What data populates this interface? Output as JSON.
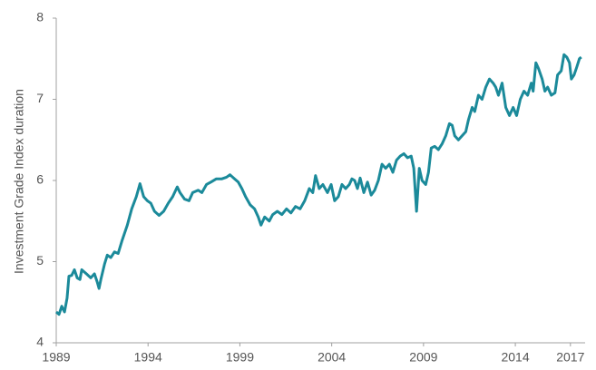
{
  "chart_data": {
    "type": "line",
    "y_label": "Investment Grade Index duration",
    "xlim": [
      1989,
      2017.8
    ],
    "xticks": [
      1989,
      1994,
      1999,
      2004,
      2009,
      2014,
      2017
    ],
    "ylim": [
      4,
      8
    ],
    "yticks": [
      4,
      5,
      6,
      7,
      8
    ],
    "series": [
      {
        "name": "Investment Grade Index duration",
        "color": "#1b8a9a",
        "x": [
          1989.0,
          1989.15,
          1989.3,
          1989.45,
          1989.59,
          1989.69,
          1989.84,
          1989.99,
          1990.14,
          1990.29,
          1990.39,
          1990.64,
          1990.88,
          1991.08,
          1991.23,
          1991.33,
          1991.43,
          1991.63,
          1991.78,
          1991.97,
          1992.17,
          1992.37,
          1992.57,
          1992.87,
          1993.11,
          1993.36,
          1993.56,
          1993.76,
          1993.96,
          1994.15,
          1994.35,
          1994.6,
          1994.85,
          1995.1,
          1995.34,
          1995.59,
          1995.74,
          1995.99,
          1996.23,
          1996.43,
          1996.73,
          1996.93,
          1997.18,
          1997.42,
          1997.72,
          1998.02,
          1998.27,
          1998.46,
          1998.71,
          1998.91,
          1999.11,
          1999.31,
          1999.56,
          1999.8,
          2000.0,
          2000.15,
          2000.35,
          2000.6,
          2000.79,
          2001.04,
          2001.29,
          2001.54,
          2001.78,
          2002.03,
          2002.28,
          2002.53,
          2002.78,
          2002.97,
          2003.12,
          2003.32,
          2003.52,
          2003.77,
          2003.97,
          2004.16,
          2004.36,
          2004.56,
          2004.76,
          2004.96,
          2005.1,
          2005.25,
          2005.4,
          2005.55,
          2005.75,
          2005.95,
          2006.15,
          2006.34,
          2006.54,
          2006.74,
          2006.94,
          2007.14,
          2007.33,
          2007.53,
          2007.73,
          2007.93,
          2008.13,
          2008.33,
          2008.47,
          2008.62,
          2008.77,
          2008.92,
          2009.12,
          2009.27,
          2009.42,
          2009.61,
          2009.81,
          2010.01,
          2010.21,
          2010.41,
          2010.56,
          2010.7,
          2010.9,
          2011.1,
          2011.3,
          2011.45,
          2011.65,
          2011.79,
          2011.99,
          2012.19,
          2012.39,
          2012.59,
          2012.79,
          2012.93,
          2013.08,
          2013.28,
          2013.48,
          2013.68,
          2013.88,
          2014.07,
          2014.27,
          2014.47,
          2014.67,
          2014.87,
          2014.97,
          2015.12,
          2015.26,
          2015.46,
          2015.61,
          2015.76,
          2015.96,
          2016.16,
          2016.3,
          2016.5,
          2016.65,
          2016.8,
          2016.95,
          2017.05,
          2017.2,
          2017.35,
          2017.49,
          2017.59
        ],
        "values": [
          4.38,
          4.35,
          4.45,
          4.38,
          4.55,
          4.82,
          4.83,
          4.9,
          4.8,
          4.78,
          4.9,
          4.85,
          4.8,
          4.85,
          4.75,
          4.67,
          4.78,
          4.97,
          5.08,
          5.05,
          5.12,
          5.1,
          5.25,
          5.45,
          5.65,
          5.8,
          5.96,
          5.8,
          5.75,
          5.72,
          5.62,
          5.57,
          5.62,
          5.72,
          5.8,
          5.92,
          5.85,
          5.77,
          5.75,
          5.85,
          5.88,
          5.85,
          5.95,
          5.98,
          6.02,
          6.02,
          6.04,
          6.07,
          6.02,
          5.98,
          5.9,
          5.8,
          5.7,
          5.65,
          5.55,
          5.45,
          5.55,
          5.5,
          5.58,
          5.62,
          5.58,
          5.65,
          5.6,
          5.68,
          5.65,
          5.75,
          5.9,
          5.85,
          6.06,
          5.9,
          5.95,
          5.85,
          5.95,
          5.75,
          5.8,
          5.95,
          5.9,
          5.95,
          6.02,
          6.0,
          5.9,
          6.03,
          5.85,
          5.98,
          5.82,
          5.88,
          6.0,
          6.2,
          6.15,
          6.2,
          6.1,
          6.25,
          6.3,
          6.33,
          6.28,
          6.3,
          6.15,
          5.62,
          6.15,
          6.0,
          5.95,
          6.1,
          6.4,
          6.42,
          6.38,
          6.45,
          6.55,
          6.7,
          6.68,
          6.55,
          6.5,
          6.55,
          6.6,
          6.75,
          6.9,
          6.85,
          7.05,
          7.0,
          7.15,
          7.25,
          7.2,
          7.15,
          7.05,
          7.2,
          6.9,
          6.8,
          6.9,
          6.8,
          7.0,
          7.1,
          7.05,
          7.2,
          7.1,
          7.45,
          7.38,
          7.25,
          7.1,
          7.15,
          7.05,
          7.08,
          7.3,
          7.35,
          7.55,
          7.52,
          7.45,
          7.25,
          7.3,
          7.4,
          7.5,
          7.52
        ]
      }
    ]
  }
}
